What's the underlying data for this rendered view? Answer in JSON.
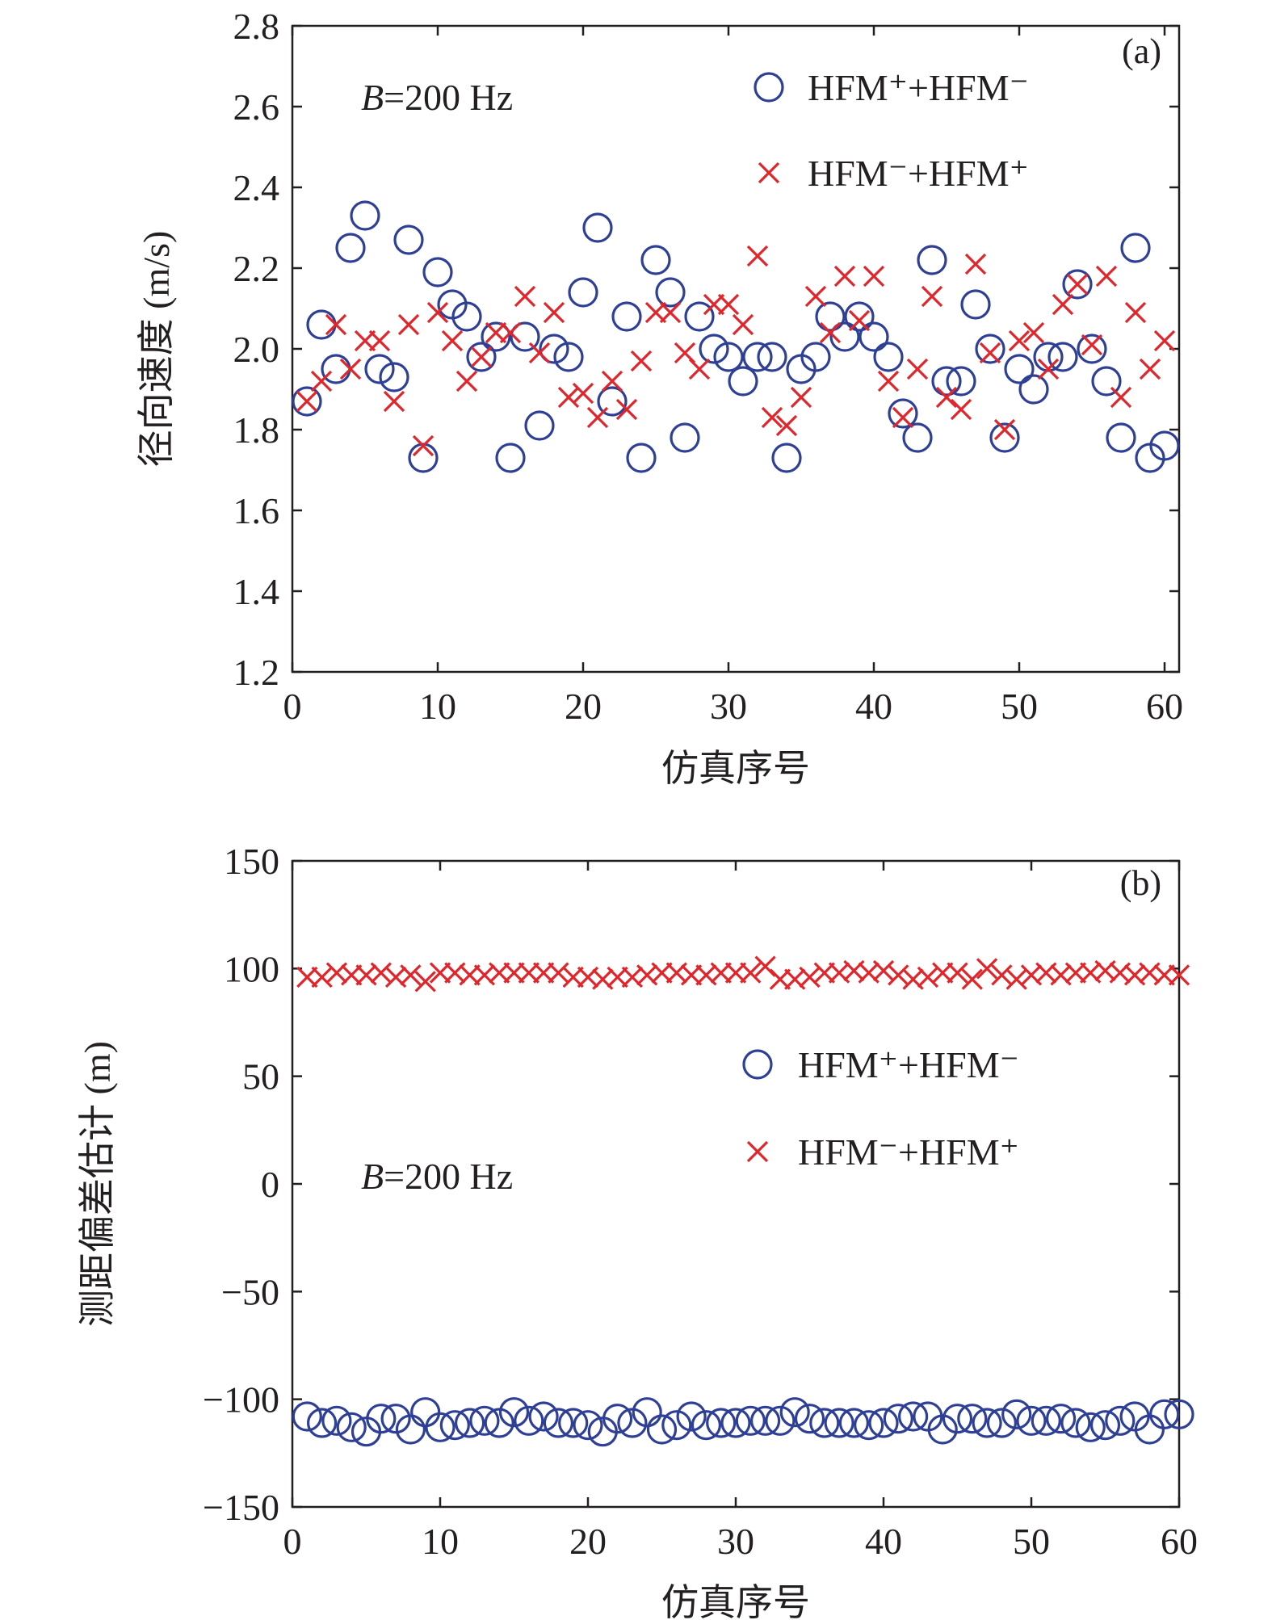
{
  "colors": {
    "series_circle": "#2e3f96",
    "series_cross": "#e0252b",
    "axis": "#231f20"
  },
  "chart_data": [
    {
      "type": "scatter",
      "panel_label": "(a)",
      "xlabel": "仿真序号",
      "ylabel": "径向速度 (m/s)",
      "xlim": [
        0,
        61
      ],
      "ylim": [
        1.2,
        2.8
      ],
      "xticks": [
        0,
        10,
        20,
        30,
        40,
        50,
        60
      ],
      "xtick_labels": [
        "0",
        "10",
        "20",
        "30",
        "40",
        "50",
        "60"
      ],
      "yticks": [
        1.2,
        1.4,
        1.6,
        1.8,
        2.0,
        2.2,
        2.4,
        2.6,
        2.8
      ],
      "ytick_labels": [
        "1.2",
        "1.4",
        "1.6",
        "1.8",
        "2.0",
        "2.2",
        "2.4",
        "2.6",
        "2.8"
      ],
      "annotation": {
        "italic": "B",
        "rest": "=200 Hz"
      },
      "legend_position": "top-right",
      "grid": false,
      "series": [
        {
          "name": "HFM⁺+HFM⁻",
          "marker": "circle",
          "x": [
            1,
            2,
            3,
            4,
            5,
            6,
            7,
            8,
            9,
            10,
            11,
            12,
            13,
            14,
            15,
            16,
            17,
            18,
            19,
            20,
            21,
            22,
            23,
            24,
            25,
            26,
            27,
            28,
            29,
            30,
            31,
            32,
            33,
            34,
            35,
            36,
            37,
            38,
            39,
            40,
            41,
            42,
            43,
            44,
            45,
            46,
            47,
            48,
            49,
            50,
            51,
            52,
            53,
            54,
            55,
            56,
            57,
            58,
            59,
            60
          ],
          "y": [
            1.87,
            2.06,
            1.95,
            2.25,
            2.33,
            1.95,
            1.93,
            2.27,
            1.73,
            2.19,
            2.11,
            2.08,
            1.98,
            2.03,
            1.73,
            2.03,
            1.81,
            2.0,
            1.98,
            2.14,
            2.3,
            1.87,
            2.08,
            1.73,
            2.22,
            2.14,
            1.78,
            2.08,
            2.0,
            1.98,
            1.92,
            1.98,
            1.98,
            1.73,
            1.95,
            1.98,
            2.08,
            2.03,
            2.08,
            2.03,
            1.98,
            1.84,
            1.78,
            2.22,
            1.92,
            1.92,
            2.11,
            2.0,
            1.78,
            1.95,
            1.9,
            1.98,
            1.98,
            2.16,
            2.0,
            1.92,
            1.78,
            2.25,
            1.73,
            1.76
          ]
        },
        {
          "name": "HFM⁻+HFM⁺",
          "marker": "x",
          "x": [
            1,
            2,
            3,
            4,
            5,
            6,
            7,
            8,
            9,
            10,
            11,
            12,
            13,
            14,
            15,
            16,
            17,
            18,
            19,
            20,
            21,
            22,
            23,
            24,
            25,
            26,
            27,
            28,
            29,
            30,
            31,
            32,
            33,
            34,
            35,
            36,
            37,
            38,
            39,
            40,
            41,
            42,
            43,
            44,
            45,
            46,
            47,
            48,
            49,
            50,
            51,
            52,
            53,
            54,
            55,
            56,
            57,
            58,
            59,
            60
          ],
          "y": [
            1.87,
            1.92,
            2.06,
            1.95,
            2.02,
            2.02,
            1.87,
            2.06,
            1.76,
            2.09,
            2.02,
            1.92,
            1.98,
            2.04,
            2.04,
            2.13,
            1.99,
            2.09,
            1.88,
            1.89,
            1.83,
            1.92,
            1.85,
            1.97,
            2.09,
            2.09,
            1.99,
            1.95,
            2.11,
            2.11,
            2.06,
            2.23,
            1.83,
            1.81,
            1.88,
            2.13,
            2.04,
            2.18,
            2.07,
            2.18,
            1.92,
            1.83,
            1.95,
            2.13,
            1.88,
            1.85,
            2.21,
            1.99,
            1.8,
            2.02,
            2.04,
            1.95,
            2.11,
            2.16,
            2.01,
            2.18,
            1.88,
            2.09,
            1.95,
            2.02
          ]
        }
      ]
    },
    {
      "type": "scatter",
      "panel_label": "(b)",
      "xlabel": "仿真序号",
      "ylabel": "测距偏差估计 (m)",
      "xlim": [
        0,
        60
      ],
      "ylim": [
        -150,
        150
      ],
      "xticks": [
        0,
        10,
        20,
        30,
        40,
        50,
        60
      ],
      "xtick_labels": [
        "0",
        "10",
        "20",
        "30",
        "40",
        "50",
        "60"
      ],
      "yticks": [
        -150,
        -100,
        -50,
        0,
        50,
        100,
        150
      ],
      "ytick_labels": [
        "−150",
        "−100",
        "−50",
        "0",
        "50",
        "100",
        "150"
      ],
      "annotation": {
        "italic": "B",
        "rest": "=200 Hz"
      },
      "legend_position": "center-right",
      "grid": false,
      "series": [
        {
          "name": "HFM⁺+HFM⁻",
          "marker": "circle",
          "x": [
            1,
            2,
            3,
            4,
            5,
            6,
            7,
            8,
            9,
            10,
            11,
            12,
            13,
            14,
            15,
            16,
            17,
            18,
            19,
            20,
            21,
            22,
            23,
            24,
            25,
            26,
            27,
            28,
            29,
            30,
            31,
            32,
            33,
            34,
            35,
            36,
            37,
            38,
            39,
            40,
            41,
            42,
            43,
            44,
            45,
            46,
            47,
            48,
            49,
            50,
            51,
            52,
            53,
            54,
            55,
            56,
            57,
            58,
            59,
            60
          ],
          "y": [
            -108,
            -111,
            -110,
            -113,
            -115,
            -109,
            -109,
            -114,
            -106,
            -113,
            -112,
            -111,
            -110,
            -111,
            -106,
            -110,
            -108,
            -111,
            -111,
            -112,
            -115,
            -109,
            -111,
            -106,
            -114,
            -112,
            -108,
            -112,
            -111,
            -111,
            -110,
            -110,
            -110,
            -106,
            -109,
            -111,
            -111,
            -111,
            -112,
            -111,
            -109,
            -108,
            -108,
            -114,
            -109,
            -109,
            -111,
            -111,
            -107,
            -110,
            -110,
            -109,
            -111,
            -113,
            -112,
            -110,
            -108,
            -114,
            -107,
            -107
          ]
        },
        {
          "name": "HFM⁻+HFM⁺",
          "marker": "x",
          "x": [
            1,
            2,
            3,
            4,
            5,
            6,
            7,
            8,
            9,
            10,
            11,
            12,
            13,
            14,
            15,
            16,
            17,
            18,
            19,
            20,
            21,
            22,
            23,
            24,
            25,
            26,
            27,
            28,
            29,
            30,
            31,
            32,
            33,
            34,
            35,
            36,
            37,
            38,
            39,
            40,
            41,
            42,
            43,
            44,
            45,
            46,
            47,
            48,
            49,
            50,
            51,
            52,
            53,
            54,
            55,
            56,
            57,
            58,
            59,
            60
          ],
          "y": [
            96,
            96,
            98,
            97,
            97,
            98,
            96,
            97,
            94,
            98,
            98,
            97,
            97,
            98,
            98,
            98,
            98,
            98,
            96,
            96,
            95,
            96,
            96,
            97,
            98,
            98,
            97,
            97,
            98,
            98,
            98,
            101,
            95,
            95,
            96,
            98,
            98,
            99,
            98,
            99,
            97,
            95,
            96,
            98,
            98,
            95,
            100,
            97,
            95,
            97,
            98,
            97,
            98,
            98,
            99,
            98,
            97,
            98,
            97,
            97
          ]
        }
      ]
    }
  ]
}
